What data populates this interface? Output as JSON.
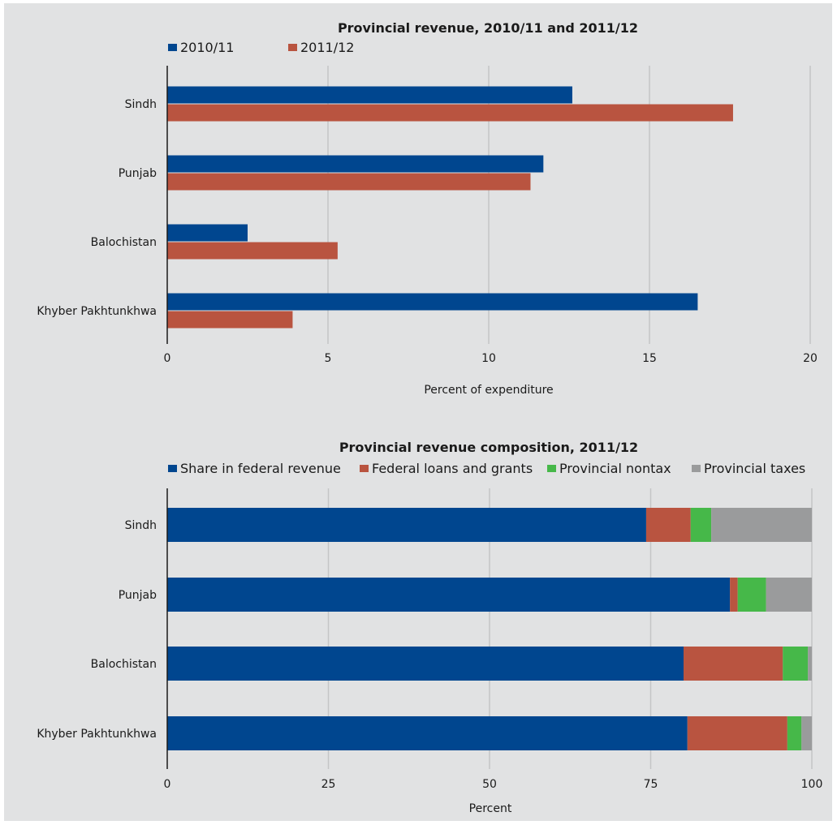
{
  "colors": {
    "background": "#e1e2e3",
    "grid": "#c4c5c6",
    "axis": "#1a1a1a",
    "blue": "#00468f",
    "red": "#b95440",
    "green": "#46b849",
    "gray": "#9a9b9c"
  },
  "chart_data": [
    {
      "type": "bar",
      "orientation": "horizontal",
      "title": "Provincial revenue, 2010/11 and 2011/12",
      "xlabel": "Percent of expenditure",
      "ylabel": "",
      "xlim": [
        0,
        20
      ],
      "xticks": [
        0,
        5,
        10,
        15,
        20
      ],
      "grid": true,
      "legend_position": "top",
      "categories": [
        "Sindh",
        "Punjab",
        "Balochistan",
        "Khyber Pakhtunkhwa"
      ],
      "series": [
        {
          "name": "2010/11",
          "color": "#00468f",
          "values": [
            12.6,
            11.7,
            2.5,
            16.5
          ]
        },
        {
          "name": "2011/12",
          "color": "#b95440",
          "values": [
            17.6,
            11.3,
            5.3,
            3.9
          ]
        }
      ]
    },
    {
      "type": "bar",
      "orientation": "horizontal",
      "stacked": true,
      "title": "Provincial revenue composition, 2011/12",
      "xlabel": "Percent",
      "ylabel": "",
      "xlim": [
        0,
        100
      ],
      "xticks": [
        0,
        25,
        50,
        75,
        100
      ],
      "grid": true,
      "legend_position": "top",
      "categories": [
        "Sindh",
        "Punjab",
        "Balochistan",
        "Khyber Pakhtunkhwa"
      ],
      "series": [
        {
          "name": "Share in federal revenue",
          "color": "#00468f",
          "values": [
            74.3,
            87.3,
            80.1,
            80.7
          ]
        },
        {
          "name": "Federal loans and grants",
          "color": "#b95440",
          "values": [
            6.9,
            1.2,
            15.4,
            15.5
          ]
        },
        {
          "name": "Provincial nontax",
          "color": "#46b849",
          "values": [
            3.2,
            4.4,
            3.9,
            2.2
          ]
        },
        {
          "name": "Provincial taxes",
          "color": "#9a9b9c",
          "values": [
            15.6,
            7.1,
            0.6,
            1.6
          ]
        }
      ]
    }
  ]
}
